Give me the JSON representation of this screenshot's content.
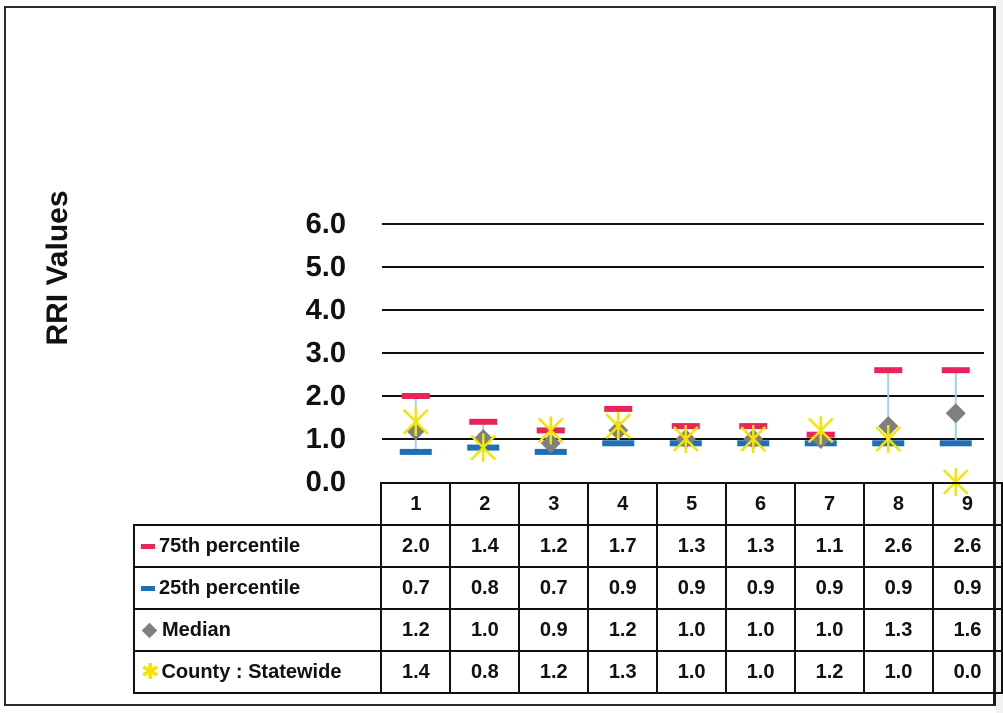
{
  "chart_data": {
    "type": "line",
    "ylabel": "RRI Values",
    "ylim": [
      0,
      6
    ],
    "yticks": [
      "0.0",
      "1.0",
      "2.0",
      "3.0",
      "4.0",
      "5.0",
      "6.0"
    ],
    "categories": [
      "1",
      "2",
      "3",
      "4",
      "5",
      "6",
      "7",
      "8",
      "9"
    ],
    "grid": true,
    "series": [
      {
        "name": "75th percentile",
        "marker": "dash",
        "color": "#e8245a",
        "values": [
          2.0,
          1.4,
          1.2,
          1.7,
          1.3,
          1.3,
          1.1,
          2.6,
          2.6
        ],
        "labels": [
          "2.0",
          "1.4",
          "1.2",
          "1.7",
          "1.3",
          "1.3",
          "1.1",
          "2.6",
          "2.6"
        ]
      },
      {
        "name": "25th percentile",
        "marker": "dash",
        "color": "#1f6fb8",
        "values": [
          0.7,
          0.8,
          0.7,
          0.9,
          0.9,
          0.9,
          0.9,
          0.9,
          0.9
        ],
        "labels": [
          "0.7",
          "0.8",
          "0.7",
          "0.9",
          "0.9",
          "0.9",
          "0.9",
          "0.9",
          "0.9"
        ]
      },
      {
        "name": "Median",
        "marker": "diamond",
        "color": "#7f7f7f",
        "values": [
          1.2,
          1.0,
          0.9,
          1.2,
          1.0,
          1.0,
          1.0,
          1.3,
          1.6
        ],
        "labels": [
          "1.2",
          "1.0",
          "0.9",
          "1.2",
          "1.0",
          "1.0",
          "1.0",
          "1.3",
          "1.6"
        ]
      },
      {
        "name": "County : Statewide",
        "marker": "star",
        "color": "#f5e400",
        "values": [
          1.4,
          0.8,
          1.2,
          1.3,
          1.0,
          1.0,
          1.2,
          1.0,
          0.0
        ],
        "labels": [
          "1.4",
          "0.8",
          "1.2",
          "1.3",
          "1.0",
          "1.0",
          "1.2",
          "1.0",
          "0.0"
        ]
      }
    ],
    "range_line_color": "#9fd3ea"
  }
}
